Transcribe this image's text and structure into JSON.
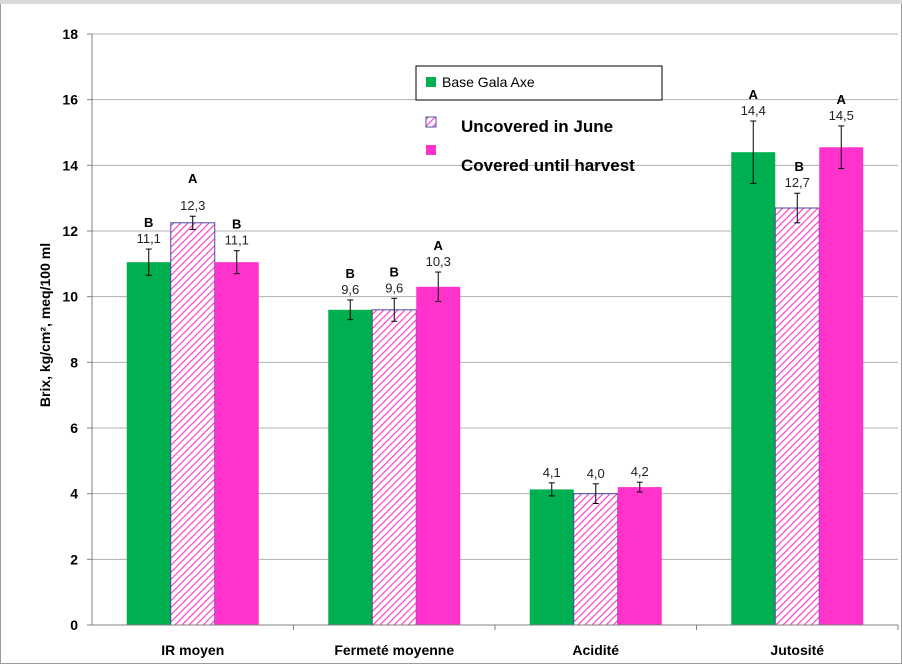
{
  "chart_data": {
    "type": "bar",
    "categories": [
      "IR moyen",
      "Fermeté moyenne",
      "Acidité",
      "Jutosité"
    ],
    "ylabel": "Brix, kg/cm², meq/100 ml",
    "ylim": [
      0,
      18
    ],
    "yticks": [
      0,
      2,
      4,
      6,
      8,
      10,
      12,
      14,
      16,
      18
    ],
    "grid": true,
    "legend_position": "top-right",
    "series": [
      {
        "name": "Base Gala Axe",
        "color": "#00b050",
        "pattern": "solid",
        "values": [
          11.05,
          9.6,
          4.13,
          14.4
        ],
        "errors": [
          0.4,
          0.3,
          0.2,
          0.95
        ],
        "labels": [
          "11,1",
          "9,6",
          "4,1",
          "14,4"
        ],
        "significance": [
          "B",
          "B",
          "",
          "A"
        ]
      },
      {
        "name": "Uncovered in June",
        "color": "#ff33cc",
        "pattern": "hatched",
        "values": [
          12.25,
          9.6,
          4.0,
          12.7
        ],
        "errors": [
          0.2,
          0.35,
          0.3,
          0.45
        ],
        "labels": [
          "12,3",
          "9,6",
          "4,0",
          "12,7"
        ],
        "significance": [
          "A",
          "B",
          "",
          "B"
        ]
      },
      {
        "name": "Covered until harvest",
        "color": "#ff33cc",
        "pattern": "solid",
        "values": [
          11.05,
          10.3,
          4.2,
          14.55
        ],
        "errors": [
          0.35,
          0.45,
          0.15,
          0.65
        ],
        "labels": [
          "11,1",
          "10,3",
          "4,2",
          "14,5"
        ],
        "significance": [
          "B",
          "A",
          "",
          "A"
        ]
      }
    ]
  }
}
